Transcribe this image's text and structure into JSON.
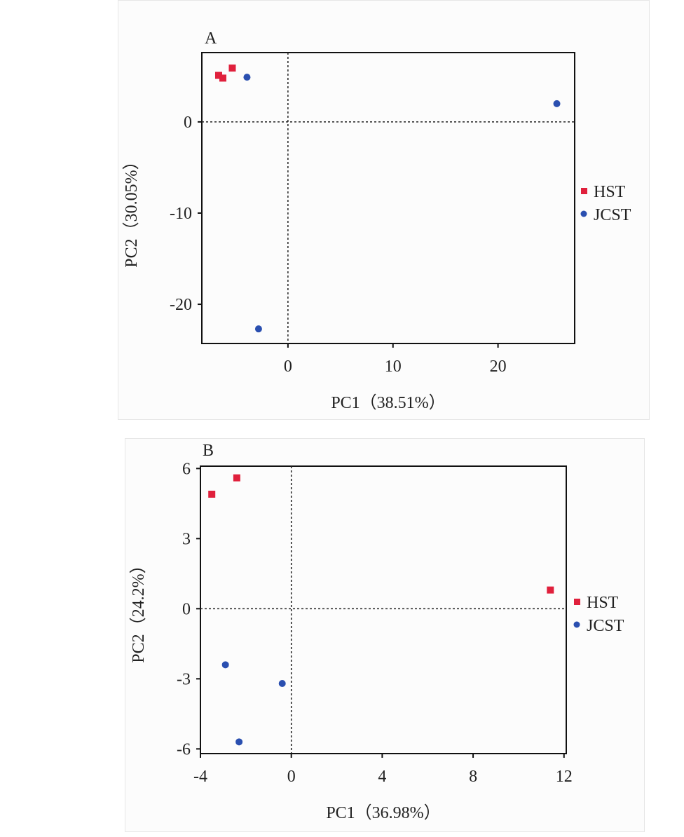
{
  "chart_data": [
    {
      "type": "scatter",
      "panel_label": "A",
      "xlabel": "PC1（38.51%）",
      "ylabel": "PC2（30.05%）",
      "xlim": [
        -8.2,
        27.3
      ],
      "ylim": [
        -24.3,
        7.6
      ],
      "xticks": [
        0,
        10,
        20
      ],
      "yticks": [
        0,
        -10,
        -20
      ],
      "legend_placement": "right",
      "series": [
        {
          "name": "HST",
          "color": "#e0203c",
          "marker": "square",
          "points": [
            [
              -6.6,
              5.1
            ],
            [
              -6.2,
              4.8
            ],
            [
              -5.3,
              5.9
            ]
          ]
        },
        {
          "name": "JCST",
          "color": "#2a4fb0",
          "marker": "circle",
          "points": [
            [
              -3.9,
              4.9
            ],
            [
              25.6,
              2.0
            ],
            [
              -2.8,
              -22.7
            ]
          ]
        }
      ]
    },
    {
      "type": "scatter",
      "panel_label": "B",
      "xlabel": "PC1（36.98%）",
      "ylabel": "PC2（24.2%）",
      "xlim": [
        -4,
        12.1
      ],
      "ylim": [
        -6.2,
        6.1
      ],
      "xticks": [
        -4,
        0,
        4,
        8,
        12
      ],
      "yticks": [
        6,
        3,
        0,
        -3,
        -6
      ],
      "legend_placement": "right",
      "series": [
        {
          "name": "HST",
          "color": "#e0203c",
          "marker": "square",
          "points": [
            [
              -3.5,
              4.9
            ],
            [
              -2.4,
              5.6
            ],
            [
              11.4,
              0.8
            ]
          ]
        },
        {
          "name": "JCST",
          "color": "#2a4fb0",
          "marker": "circle",
          "points": [
            [
              -2.9,
              -2.4
            ],
            [
              -0.4,
              -3.2
            ],
            [
              -2.3,
              -5.7
            ]
          ]
        }
      ]
    }
  ]
}
